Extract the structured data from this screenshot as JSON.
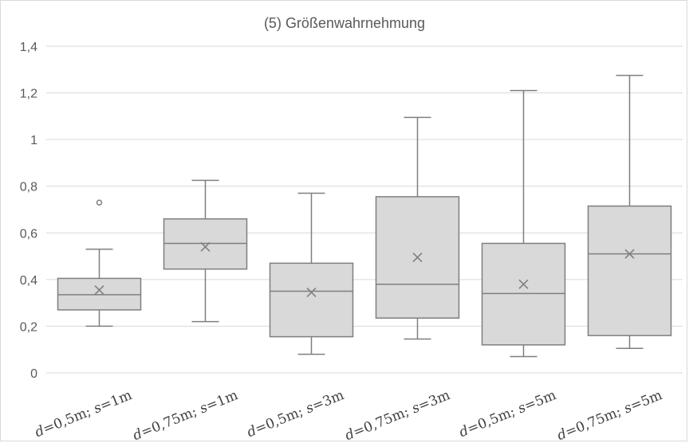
{
  "chart_data": {
    "type": "boxplot",
    "title": "(5) Größenwahrnehmung",
    "xlabel": "",
    "ylabel": "",
    "ylim": [
      0,
      1.4
    ],
    "yticks": [
      "0",
      "0,2",
      "0,4",
      "0,6",
      "0,8",
      "1",
      "1,2",
      "1,4"
    ],
    "grid": true,
    "colors": {
      "box_fill": "#d9d9d9",
      "box_stroke": "#7f7f7f",
      "grid": "#d9d9d9",
      "text": "#595959"
    },
    "categories": [
      {
        "d": "0,5m",
        "s": "1m"
      },
      {
        "d": "0,75m",
        "s": "1m"
      },
      {
        "d": "0,5m",
        "s": "3m"
      },
      {
        "d": "0,75m",
        "s": "3m"
      },
      {
        "d": "0,5m",
        "s": "5m"
      },
      {
        "d": "0,75m",
        "s": "5m"
      }
    ],
    "boxes": [
      {
        "min": 0.2,
        "q1": 0.27,
        "median": 0.335,
        "q3": 0.405,
        "max": 0.53,
        "mean": 0.355,
        "outliers": [
          0.73
        ]
      },
      {
        "min": 0.22,
        "q1": 0.445,
        "median": 0.555,
        "q3": 0.66,
        "max": 0.825,
        "mean": 0.54,
        "outliers": []
      },
      {
        "min": 0.08,
        "q1": 0.155,
        "median": 0.35,
        "q3": 0.47,
        "max": 0.77,
        "mean": 0.345,
        "outliers": []
      },
      {
        "min": 0.145,
        "q1": 0.235,
        "median": 0.38,
        "q3": 0.755,
        "max": 1.095,
        "mean": 0.495,
        "outliers": []
      },
      {
        "min": 0.07,
        "q1": 0.12,
        "median": 0.34,
        "q3": 0.555,
        "max": 1.21,
        "mean": 0.38,
        "outliers": []
      },
      {
        "min": 0.105,
        "q1": 0.16,
        "median": 0.51,
        "q3": 0.715,
        "max": 1.275,
        "mean": 0.51,
        "outliers": []
      }
    ]
  }
}
